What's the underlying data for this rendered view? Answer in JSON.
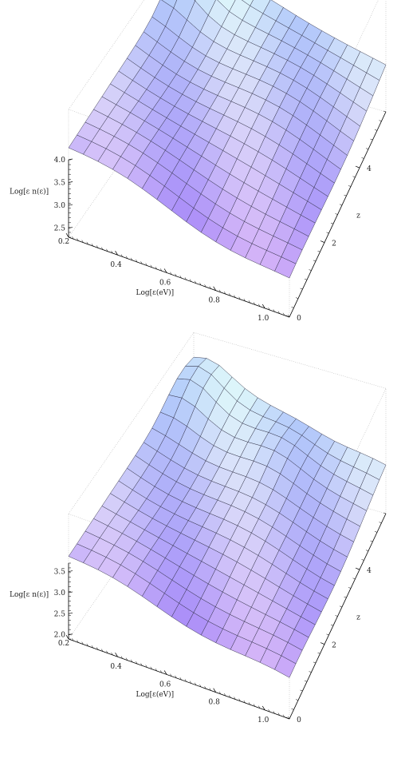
{
  "chart_data": [
    {
      "type": "surface",
      "zlabel": "Log[ε n(ε)]",
      "xlabel": "Log[ε(eV)]",
      "ylabel": "z",
      "x_ticks": [
        "0.2",
        "0.4",
        "0.6",
        "0.8",
        "1.0"
      ],
      "y_ticks": [
        "0",
        "2",
        "4"
      ],
      "z_ticks": [
        "2.5",
        "3.0",
        "3.5",
        "4.0"
      ],
      "xlim": [
        0.2,
        1.1
      ],
      "ylim": [
        0,
        5.5
      ],
      "zlim": [
        2.3,
        4.0
      ],
      "grid_size": 15,
      "surface_summary": "Log[ε n(ε)] falls from about 3.5 at Log[ε]=0.2 to about 2.7 at Log[ε]=1.1; bump at high z near low ε."
    },
    {
      "type": "surface",
      "zlabel": "Log[ε n(ε)]",
      "xlabel": "Log[ε(eV)]",
      "ylabel": "z",
      "x_ticks": [
        "0.2",
        "0.4",
        "0.6",
        "0.8",
        "1.0"
      ],
      "y_ticks": [
        "0",
        "2",
        "4"
      ],
      "z_ticks": [
        "2.0",
        "2.5",
        "3.0",
        "3.5"
      ],
      "xlim": [
        0.2,
        1.1
      ],
      "ylim": [
        0,
        5.5
      ],
      "zlim": [
        1.9,
        3.7
      ],
      "grid_size": 15,
      "surface_summary": "Log[ε n(ε)] falls from about 3.3 at Log[ε]=0.2 to about 2.4 at Log[ε]=1.1; bumps at high z near low and mid ε."
    }
  ]
}
